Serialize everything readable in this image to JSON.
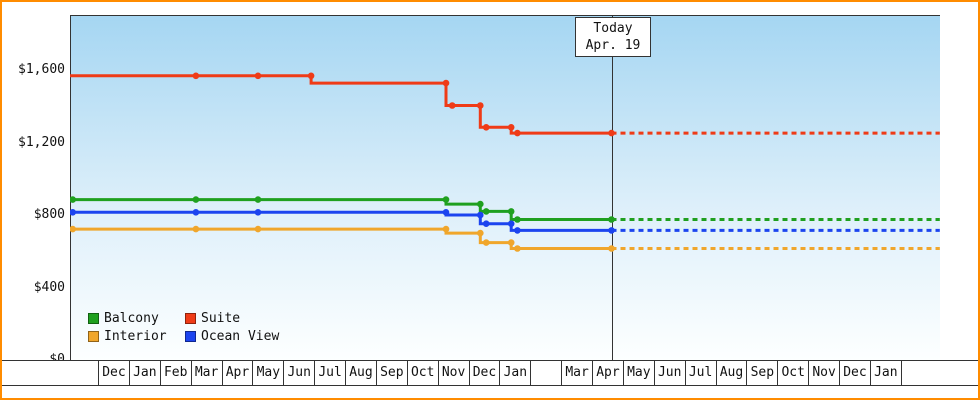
{
  "colors": {
    "frame_border": "#ff8c00",
    "axis": "#333333",
    "plot_top": "#a5d6f2",
    "plot_bottom": "#fdffff",
    "text": "#111111"
  },
  "today_box": {
    "line1": "Today",
    "line2": "Apr. 19"
  },
  "legend": {
    "items": [
      {
        "label": "Balcony",
        "color": "#1fa01f"
      },
      {
        "label": "Suite",
        "color": "#ef3b17"
      },
      {
        "label": "Interior",
        "color": "#f0a62b"
      },
      {
        "label": "Ocean View",
        "color": "#1c44ef"
      }
    ]
  },
  "chart_data": {
    "type": "line",
    "y_ticks": [
      {
        "value": 0,
        "label": "$0"
      },
      {
        "value": 400,
        "label": "$400"
      },
      {
        "value": 800,
        "label": "$800"
      },
      {
        "value": 1200,
        "label": "$1,200"
      },
      {
        "value": 1600,
        "label": "$1,600"
      }
    ],
    "ylim": [
      0,
      1903
    ],
    "grid": false,
    "legend_position": "bottom-left",
    "x_months": [
      "Dec",
      "Jan",
      "Feb",
      "Mar",
      "Apr",
      "May",
      "Jun",
      "Jul",
      "Aug",
      "Sep",
      "Oct",
      "Nov",
      "Dec",
      "Jan",
      "",
      "Mar",
      "Apr",
      "May",
      "Jun",
      "Jul",
      "Aug",
      "Sep",
      "Oct",
      "Nov",
      "Dec",
      "Jan"
    ],
    "today": {
      "label": "Today",
      "date": "Apr. 19",
      "month_index": 16.13
    },
    "forecast_end_index": 26.76,
    "series": [
      {
        "name": "Balcony",
        "color": "#1fa01f",
        "points": [
          [
            -1.45,
            885,
            0
          ],
          [
            -1.32,
            885,
            1
          ],
          [
            2.67,
            885,
            1
          ],
          [
            4.68,
            885,
            1
          ],
          [
            10.77,
            885,
            1
          ],
          [
            10.77,
            860,
            0
          ],
          [
            11.88,
            860,
            1
          ],
          [
            11.88,
            820,
            0
          ],
          [
            12.07,
            820,
            1
          ],
          [
            12.88,
            820,
            1
          ],
          [
            12.88,
            775,
            0
          ],
          [
            13.08,
            775,
            1
          ],
          [
            16.13,
            775,
            1
          ]
        ],
        "forecast_value": 775
      },
      {
        "name": "Interior",
        "color": "#f0a62b",
        "points": [
          [
            -1.45,
            722,
            0
          ],
          [
            -1.32,
            722,
            1
          ],
          [
            2.67,
            722,
            1
          ],
          [
            4.68,
            722,
            1
          ],
          [
            10.77,
            722,
            1
          ],
          [
            10.77,
            700,
            0
          ],
          [
            11.88,
            700,
            1
          ],
          [
            11.88,
            648,
            0
          ],
          [
            12.07,
            648,
            1
          ],
          [
            12.88,
            648,
            1
          ],
          [
            12.88,
            615,
            0
          ],
          [
            13.08,
            615,
            1
          ],
          [
            16.13,
            615,
            1
          ]
        ],
        "forecast_value": 615
      },
      {
        "name": "Ocean View",
        "color": "#1c44ef",
        "points": [
          [
            -1.45,
            815,
            0
          ],
          [
            -1.32,
            815,
            1
          ],
          [
            2.67,
            815,
            1
          ],
          [
            4.68,
            815,
            1
          ],
          [
            10.77,
            815,
            1
          ],
          [
            10.77,
            800,
            0
          ],
          [
            11.88,
            800,
            1
          ],
          [
            11.88,
            752,
            0
          ],
          [
            12.07,
            752,
            1
          ],
          [
            12.88,
            752,
            1
          ],
          [
            12.88,
            715,
            0
          ],
          [
            13.08,
            715,
            1
          ],
          [
            16.13,
            715,
            1
          ]
        ],
        "forecast_value": 715
      },
      {
        "name": "Suite",
        "color": "#ef3b17",
        "points": [
          [
            -1.45,
            1568,
            0
          ],
          [
            2.67,
            1568,
            1
          ],
          [
            4.68,
            1568,
            1
          ],
          [
            6.4,
            1568,
            1
          ],
          [
            6.4,
            1528,
            0
          ],
          [
            10.77,
            1528,
            1
          ],
          [
            10.77,
            1404,
            0
          ],
          [
            10.97,
            1404,
            1
          ],
          [
            11.88,
            1404,
            1
          ],
          [
            11.88,
            1284,
            0
          ],
          [
            12.07,
            1284,
            1
          ],
          [
            12.88,
            1284,
            1
          ],
          [
            12.88,
            1252,
            0
          ],
          [
            13.08,
            1252,
            1
          ],
          [
            16.13,
            1252,
            1
          ]
        ],
        "forecast_value": 1252
      }
    ]
  }
}
